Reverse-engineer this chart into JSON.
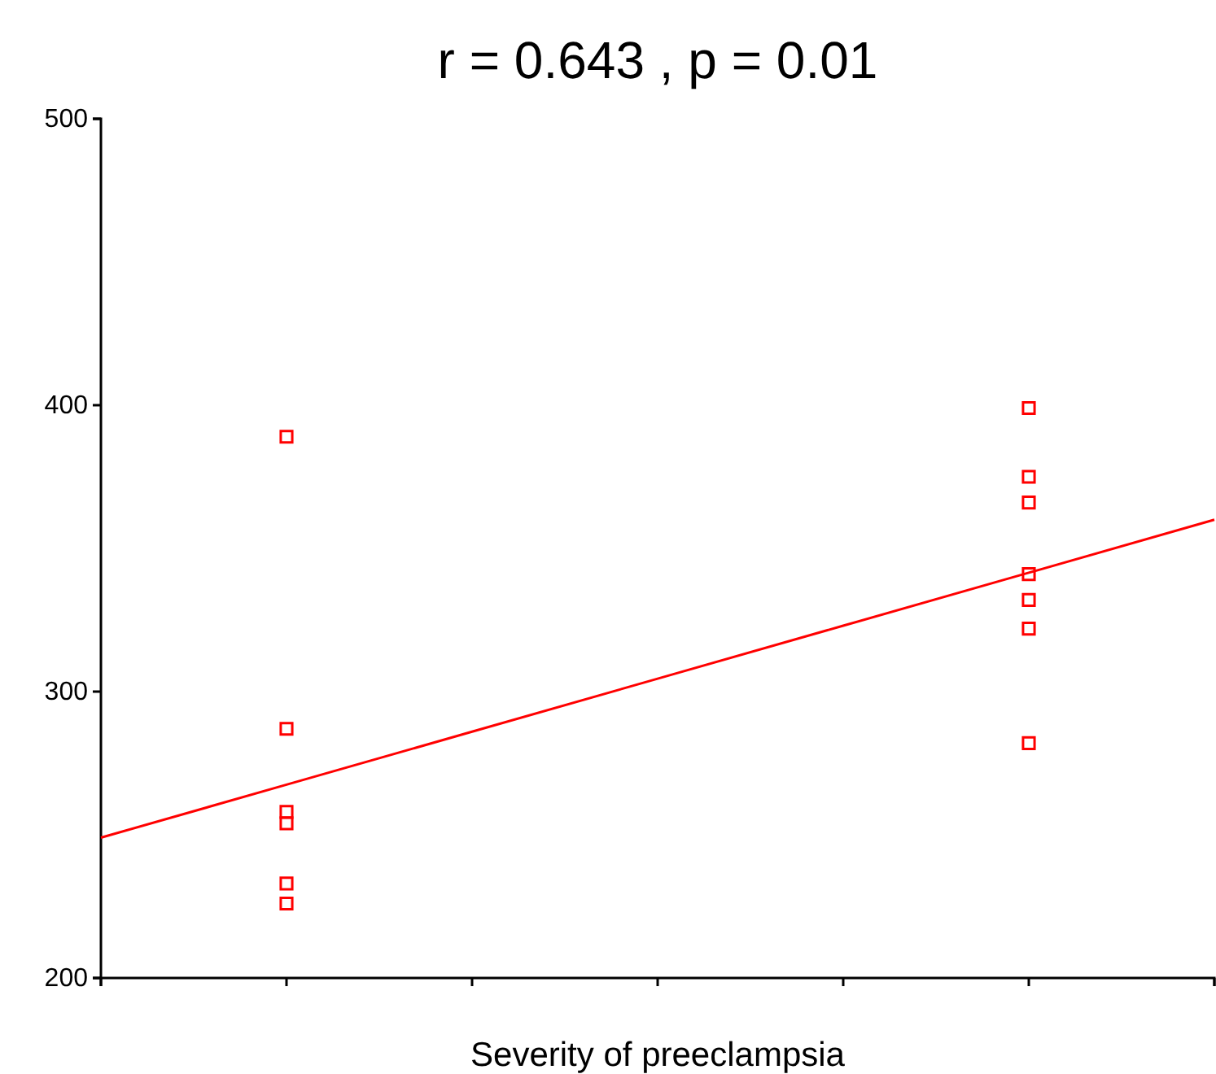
{
  "chart_data": {
    "type": "scatter",
    "title": "r = 0.643 , p = 0.01",
    "xlabel": "Severity of preeclampsia",
    "categories": [
      null,
      null,
      null,
      null,
      null,
      null,
      null
    ],
    "ylim": [
      200,
      500
    ],
    "yticks": [
      200,
      300,
      400,
      500
    ],
    "marker": "square",
    "series": [
      {
        "color": "#ff0000",
        "values": [
          null,
          389,
          null,
          null,
          null,
          399,
          null
        ]
      },
      {
        "color": "#ff0000",
        "values": [
          null,
          287,
          null,
          null,
          null,
          375,
          null
        ]
      },
      {
        "color": "#ff0000",
        "values": [
          null,
          258,
          null,
          null,
          null,
          366,
          null
        ]
      },
      {
        "color": "#ff0000",
        "values": [
          null,
          254,
          null,
          null,
          null,
          341,
          null
        ]
      },
      {
        "color": "#ff0000",
        "values": [
          null,
          233,
          null,
          null,
          null,
          332,
          null
        ]
      },
      {
        "color": "#ff0000",
        "values": [
          null,
          226,
          null,
          null,
          null,
          322,
          null
        ]
      },
      {
        "color": "#ff0000",
        "values": [
          null,
          null,
          null,
          null,
          null,
          282,
          null
        ]
      },
      {
        "type": "line",
        "marker": "none",
        "color": "#ff0000",
        "values": [
          249,
          267.5,
          286,
          304.5,
          323,
          341.5,
          360
        ]
      }
    ]
  }
}
